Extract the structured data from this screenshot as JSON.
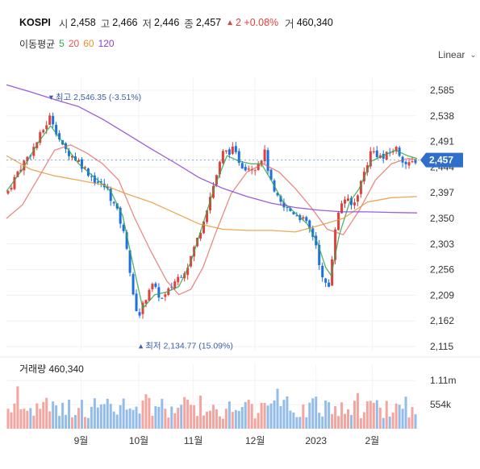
{
  "header": {
    "symbol": "KOSPI",
    "open_label": "시",
    "open": "2,458",
    "high_label": "고",
    "high": "2,466",
    "low_label": "저",
    "low": "2,446",
    "close_label": "종",
    "close": "2,457",
    "change_icon": "up-triangle",
    "change": "2 +0.08%",
    "volume_label": "거",
    "volume": "460,340"
  },
  "ma_legend": {
    "title": "이동평균",
    "periods": [
      {
        "label": "5",
        "color": "#2fa84f"
      },
      {
        "label": "20",
        "color": "#e0584f"
      },
      {
        "label": "60",
        "color": "#e8922d"
      },
      {
        "label": "120",
        "color": "#8b3fd6"
      }
    ]
  },
  "scale_button": {
    "label": "Linear",
    "icon": "chevron-down-icon"
  },
  "volume_panel": {
    "label": "거래량 460,340"
  },
  "chart_data": {
    "type": "candlestick",
    "price_axis": {
      "ticks": [
        2585,
        2538,
        2491,
        2444,
        2397,
        2350,
        2303,
        2256,
        2209,
        2162,
        2115
      ],
      "tick_labels": [
        "2,585",
        "2,538",
        "2,491",
        "2,444",
        "2,397",
        "2,350",
        "2,303",
        "2,256",
        "2,209",
        "2,162",
        "2,115"
      ],
      "range": [
        2115,
        2605
      ]
    },
    "current_price": {
      "value": 2457,
      "label": "2,457"
    },
    "annotations": [
      {
        "icon": "down-triangle",
        "text": "최고 2,546.35 (-3.51%)",
        "value": 2546.35,
        "index": 53
      },
      {
        "icon": "up-triangle",
        "text": "최저 2,134.77 (15.09%)",
        "value": 2134.77,
        "index": 165
      }
    ],
    "volume_axis": {
      "tick_labels": [
        "1.11m",
        "554k"
      ],
      "ticks": [
        1110000,
        554000
      ],
      "max": 1300000
    },
    "time_axis": [
      {
        "label": "9월",
        "index": 93
      },
      {
        "label": "10월",
        "index": 165
      },
      {
        "label": "11월",
        "index": 233
      },
      {
        "label": "12월",
        "index": 310
      },
      {
        "label": "2023",
        "index": 386
      },
      {
        "label": "2월",
        "index": 456
      }
    ],
    "index_range": [
      0,
      510
    ],
    "close_anchors": [
      [
        0,
        2395
      ],
      [
        15,
        2438
      ],
      [
        35,
        2482
      ],
      [
        55,
        2538
      ],
      [
        70,
        2480
      ],
      [
        90,
        2455
      ],
      [
        110,
        2420
      ],
      [
        125,
        2405
      ],
      [
        140,
        2355
      ],
      [
        150,
        2300
      ],
      [
        158,
        2205
      ],
      [
        165,
        2170
      ],
      [
        180,
        2230
      ],
      [
        195,
        2200
      ],
      [
        210,
        2235
      ],
      [
        225,
        2260
      ],
      [
        240,
        2320
      ],
      [
        255,
        2395
      ],
      [
        270,
        2470
      ],
      [
        282,
        2475
      ],
      [
        295,
        2445
      ],
      [
        310,
        2445
      ],
      [
        322,
        2470
      ],
      [
        332,
        2400
      ],
      [
        345,
        2370
      ],
      [
        360,
        2360
      ],
      [
        372,
        2345
      ],
      [
        385,
        2310
      ],
      [
        395,
        2230
      ],
      [
        402,
        2225
      ],
      [
        410,
        2335
      ],
      [
        420,
        2390
      ],
      [
        432,
        2370
      ],
      [
        445,
        2430
      ],
      [
        455,
        2475
      ],
      [
        470,
        2460
      ],
      [
        485,
        2480
      ],
      [
        500,
        2445
      ],
      [
        510,
        2457
      ]
    ],
    "ma_lines": {
      "ma5": [
        [
          0,
          2400
        ],
        [
          20,
          2440
        ],
        [
          40,
          2490
        ],
        [
          55,
          2520
        ],
        [
          70,
          2490
        ],
        [
          90,
          2450
        ],
        [
          110,
          2425
        ],
        [
          130,
          2400
        ],
        [
          145,
          2355
        ],
        [
          155,
          2285
        ],
        [
          170,
          2185
        ],
        [
          185,
          2210
        ],
        [
          200,
          2215
        ],
        [
          215,
          2225
        ],
        [
          230,
          2270
        ],
        [
          245,
          2340
        ],
        [
          260,
          2410
        ],
        [
          275,
          2465
        ],
        [
          290,
          2455
        ],
        [
          305,
          2450
        ],
        [
          318,
          2450
        ],
        [
          330,
          2420
        ],
        [
          345,
          2380
        ],
        [
          360,
          2360
        ],
        [
          375,
          2340
        ],
        [
          388,
          2305
        ],
        [
          398,
          2260
        ],
        [
          405,
          2245
        ],
        [
          415,
          2320
        ],
        [
          428,
          2380
        ],
        [
          440,
          2405
        ],
        [
          455,
          2455
        ],
        [
          470,
          2465
        ],
        [
          485,
          2475
        ],
        [
          500,
          2465
        ],
        [
          512,
          2460
        ]
      ],
      "ma20": [
        [
          0,
          2350
        ],
        [
          20,
          2375
        ],
        [
          40,
          2425
        ],
        [
          60,
          2475
        ],
        [
          80,
          2485
        ],
        [
          100,
          2470
        ],
        [
          120,
          2450
        ],
        [
          140,
          2420
        ],
        [
          160,
          2350
        ],
        [
          180,
          2290
        ],
        [
          200,
          2235
        ],
        [
          215,
          2210
        ],
        [
          230,
          2220
        ],
        [
          245,
          2260
        ],
        [
          260,
          2320
        ],
        [
          280,
          2395
        ],
        [
          300,
          2435
        ],
        [
          320,
          2450
        ],
        [
          340,
          2435
        ],
        [
          360,
          2405
        ],
        [
          380,
          2370
        ],
        [
          400,
          2330
        ],
        [
          420,
          2320
        ],
        [
          440,
          2365
        ],
        [
          460,
          2420
        ],
        [
          480,
          2450
        ],
        [
          500,
          2460
        ],
        [
          512,
          2458
        ]
      ],
      "ma60": [
        [
          0,
          2465
        ],
        [
          30,
          2440
        ],
        [
          60,
          2428
        ],
        [
          90,
          2420
        ],
        [
          120,
          2412
        ],
        [
          150,
          2395
        ],
        [
          180,
          2380
        ],
        [
          210,
          2360
        ],
        [
          240,
          2340
        ],
        [
          270,
          2330
        ],
        [
          300,
          2328
        ],
        [
          330,
          2328
        ],
        [
          360,
          2325
        ],
        [
          390,
          2337
        ],
        [
          420,
          2350
        ],
        [
          450,
          2380
        ],
        [
          480,
          2388
        ],
        [
          512,
          2390
        ]
      ],
      "ma120": [
        [
          0,
          2595
        ],
        [
          30,
          2582
        ],
        [
          60,
          2568
        ],
        [
          90,
          2555
        ],
        [
          120,
          2532
        ],
        [
          150,
          2505
        ],
        [
          180,
          2478
        ],
        [
          210,
          2452
        ],
        [
          240,
          2425
        ],
        [
          270,
          2405
        ],
        [
          300,
          2390
        ],
        [
          330,
          2378
        ],
        [
          360,
          2370
        ],
        [
          390,
          2365
        ],
        [
          420,
          2362
        ],
        [
          450,
          2362
        ],
        [
          480,
          2361
        ],
        [
          512,
          2360
        ]
      ]
    }
  }
}
